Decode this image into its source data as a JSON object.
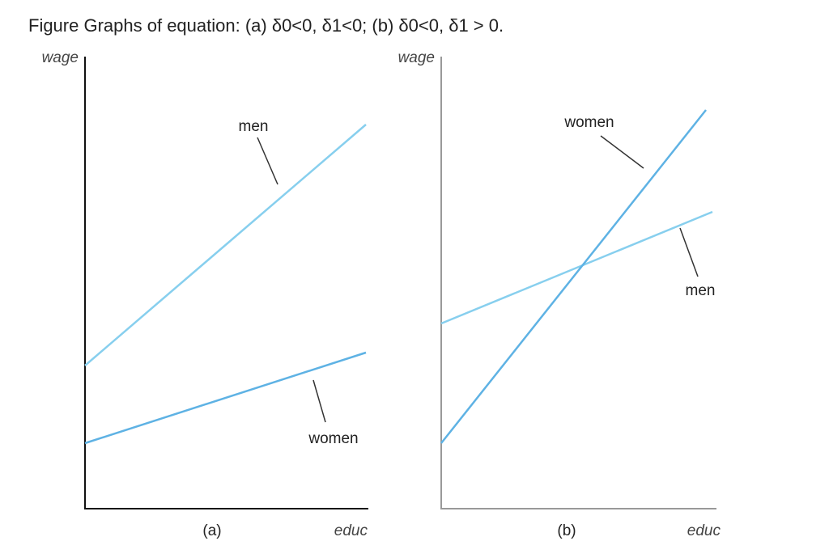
{
  "title": "Figure Graphs of equation: (a) δ0<0, δ1<0; (b) δ0<0, δ1 > 0.",
  "panels": [
    {
      "y_label": "wage",
      "x_label": "educ",
      "caption": "(a)",
      "lines": [
        {
          "label": "men"
        },
        {
          "label": "women"
        }
      ]
    },
    {
      "y_label": "wage",
      "x_label": "educ",
      "caption": "(b)",
      "lines": [
        {
          "label": "women"
        },
        {
          "label": "men"
        }
      ]
    }
  ]
}
